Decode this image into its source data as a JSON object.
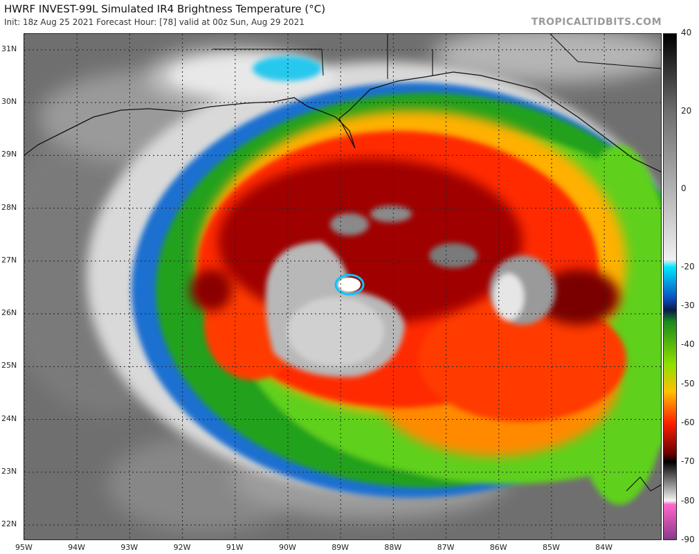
{
  "header": {
    "title": "HWRF INVEST-99L Simulated IR4 Brightness Temperature (°C)",
    "subtitle": "Init: 18z Aug 25 2021   Forecast Hour: [78]   valid at 00z Sun, Aug 29 2021",
    "brand": "TROPICALTIDBITS.COM"
  },
  "map": {
    "lat_labels": [
      "31N",
      "30N",
      "29N",
      "28N",
      "27N",
      "26N",
      "25N",
      "24N",
      "23N",
      "22N"
    ],
    "lon_labels": [
      "95W",
      "94W",
      "93W",
      "92W",
      "91W",
      "90W",
      "89W",
      "88W",
      "87W",
      "86W",
      "85W",
      "84W"
    ],
    "lat_range": [
      21.7,
      31.3
    ],
    "lon_range": [
      -95.0,
      -82.9
    ],
    "storm_center": {
      "lon": -89.6,
      "lat": 26.4
    }
  },
  "colorbar": {
    "labels": [
      "40",
      "20",
      "0",
      "-20",
      "-30",
      "-40",
      "-50",
      "-60",
      "-70",
      "-80",
      "-90"
    ],
    "range": [
      40,
      -90
    ],
    "stops": [
      {
        "t": 40,
        "color": "#000000"
      },
      {
        "t": 20,
        "color": "#6e6e6e"
      },
      {
        "t": -18,
        "color": "#f0f0f0"
      },
      {
        "t": -20,
        "color": "#00e5ff"
      },
      {
        "t": -28,
        "color": "#0a4fbf"
      },
      {
        "t": -31,
        "color": "#0a1a4a"
      },
      {
        "t": -34,
        "color": "#1a8a1a"
      },
      {
        "t": -45,
        "color": "#8fe000"
      },
      {
        "t": -52,
        "color": "#ffc000"
      },
      {
        "t": -60,
        "color": "#ff2000"
      },
      {
        "t": -68,
        "color": "#6a0000"
      },
      {
        "t": -70,
        "color": "#000000"
      },
      {
        "t": -80,
        "color": "#f4f4f4"
      },
      {
        "t": -81,
        "color": "#ff66cc"
      },
      {
        "t": -90,
        "color": "#8a3a8a"
      }
    ]
  }
}
